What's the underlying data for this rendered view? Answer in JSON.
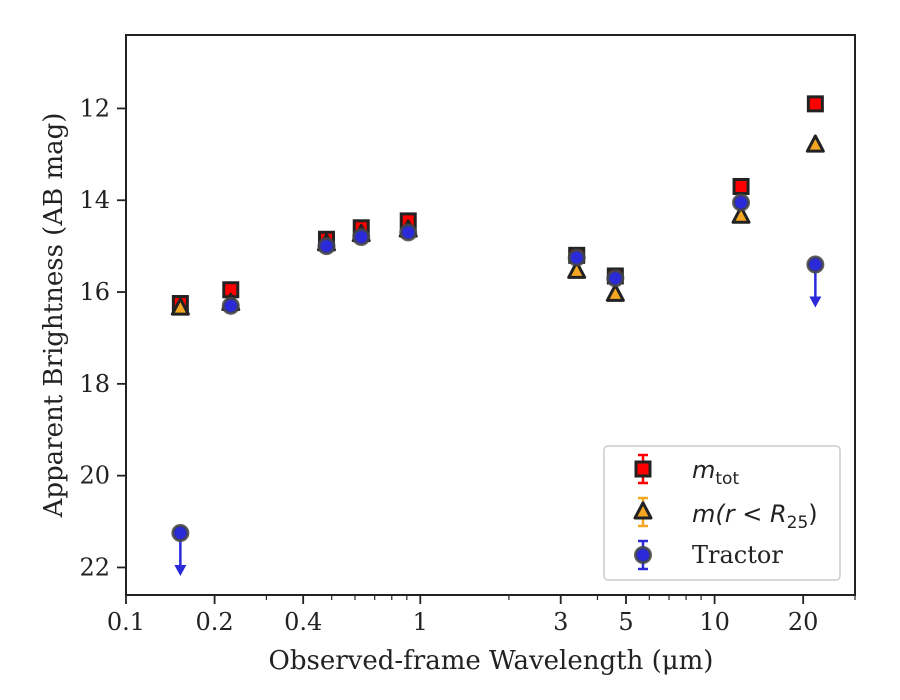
{
  "chart_data": {
    "type": "scatter",
    "xlabel": "Observed-frame Wavelength (μm)",
    "ylabel": "Apparent Brightness (AB mag)",
    "xscale": "log",
    "xlim": [
      0.1,
      30
    ],
    "ylim": [
      22.6,
      10.4
    ],
    "y_inverted": true,
    "x_ticks": [
      {
        "value": 0.1,
        "label": "0.1"
      },
      {
        "value": 0.2,
        "label": "0.2"
      },
      {
        "value": 0.4,
        "label": "0.4"
      },
      {
        "value": 1,
        "label": "1"
      },
      {
        "value": 3,
        "label": "3"
      },
      {
        "value": 5,
        "label": "5"
      },
      {
        "value": 10,
        "label": "10"
      },
      {
        "value": 20,
        "label": "20"
      }
    ],
    "y_ticks": [
      12,
      14,
      16,
      18,
      20,
      22
    ],
    "grid": false,
    "legend_position": "lower-right",
    "series": [
      {
        "key": "mtot",
        "name": "m_tot",
        "marker": "square",
        "color": "#ff0000",
        "edge": "#222222",
        "points": [
          {
            "x": 0.153,
            "y": 16.25
          },
          {
            "x": 0.227,
            "y": 15.95
          },
          {
            "x": 0.48,
            "y": 14.85
          },
          {
            "x": 0.63,
            "y": 14.6
          },
          {
            "x": 0.91,
            "y": 14.45
          },
          {
            "x": 3.4,
            "y": 15.2
          },
          {
            "x": 4.6,
            "y": 15.65
          },
          {
            "x": 12.3,
            "y": 13.7
          },
          {
            "x": 22.0,
            "y": 11.9
          }
        ]
      },
      {
        "key": "mr25",
        "name": "m(r < R25)",
        "marker": "triangle",
        "color": "#f5a623",
        "edge": "#222222",
        "points": [
          {
            "x": 0.153,
            "y": 16.35
          },
          {
            "x": 0.227,
            "y": 16.25
          },
          {
            "x": 0.48,
            "y": 14.95
          },
          {
            "x": 0.63,
            "y": 14.75
          },
          {
            "x": 0.91,
            "y": 14.65
          },
          {
            "x": 3.4,
            "y": 15.55
          },
          {
            "x": 4.6,
            "y": 16.05
          },
          {
            "x": 12.3,
            "y": 14.35
          },
          {
            "x": 22.0,
            "y": 12.8
          }
        ]
      },
      {
        "key": "tractor",
        "name": "Tractor",
        "marker": "circle",
        "color": "#2a2ad8",
        "edge": "#444444",
        "points": [
          {
            "x": 0.153,
            "y": 21.25,
            "upper_limit": true
          },
          {
            "x": 0.227,
            "y": 16.3
          },
          {
            "x": 0.48,
            "y": 15.0
          },
          {
            "x": 0.63,
            "y": 14.8
          },
          {
            "x": 0.91,
            "y": 14.7
          },
          {
            "x": 3.4,
            "y": 15.25
          },
          {
            "x": 4.6,
            "y": 15.7
          },
          {
            "x": 12.3,
            "y": 14.05
          },
          {
            "x": 22.0,
            "y": 15.4,
            "upper_limit": true
          }
        ]
      }
    ]
  },
  "legend": {
    "mtot_main": "m",
    "mtot_sub": "tot",
    "mr25_label": "m(r < R",
    "mr25_sub": "25",
    "mr25_close": ")",
    "tractor_label": "Tractor"
  }
}
